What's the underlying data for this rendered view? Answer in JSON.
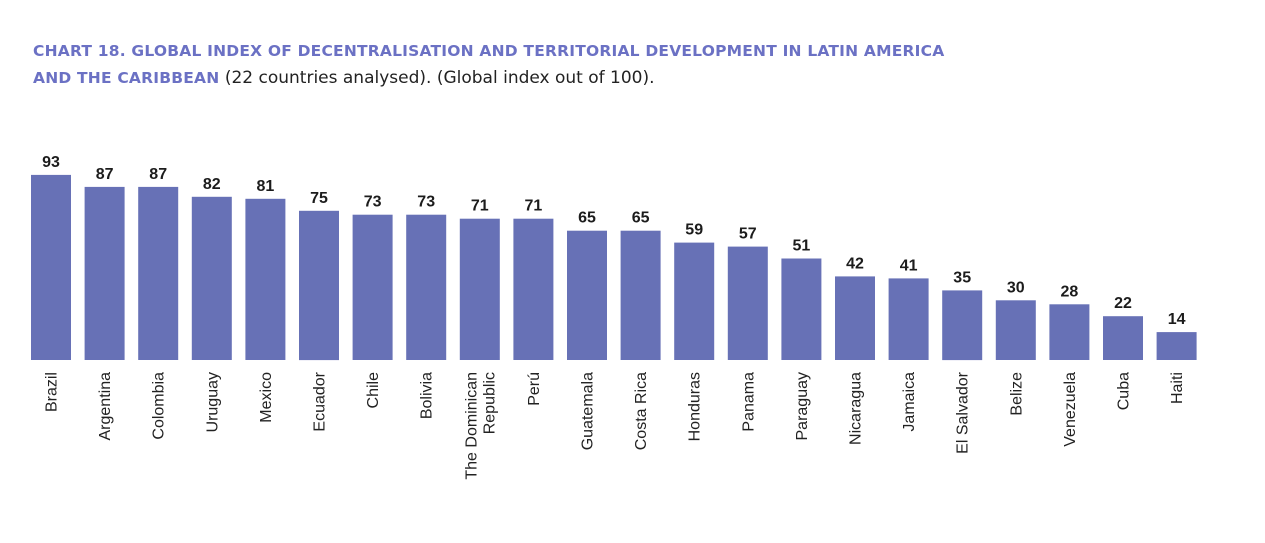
{
  "title": {
    "bold_line1": "CHART 18. GLOBAL INDEX OF DECENTRALISATION AND TERRITORIAL DEVELOPMENT IN LATIN AMERICA",
    "bold_line2": "AND THE CARIBBEAN",
    "normal_suffix": " (22 countries analysed). (Global index out of 100)."
  },
  "colors": {
    "bar": "#6771b6",
    "title_accent": "#6b71c4",
    "text": "#1c1c1c"
  },
  "chart_data": {
    "type": "bar",
    "title": "CHART 18. GLOBAL INDEX OF DECENTRALISATION AND TERRITORIAL DEVELOPMENT IN LATIN AMERICA AND THE CARIBBEAN (22 countries analysed). (Global index out of 100).",
    "xlabel": "",
    "ylabel": "",
    "ylim": [
      0,
      100
    ],
    "grid": false,
    "legend": "none",
    "categories": [
      "Brazil",
      "Argentina",
      "Colombia",
      "Uruguay",
      "Mexico",
      "Ecuador",
      "Chile",
      "Bolivia",
      "The Dominican Republic",
      "Perú",
      "Guatemala",
      "Costa Rica",
      "Honduras",
      "Panama",
      "Paraguay",
      "Nicaragua",
      "Jamaica",
      "El Salvador",
      "Belize",
      "Venezuela",
      "Cuba",
      "Haiti"
    ],
    "category_label_lines": [
      [
        "Brazil"
      ],
      [
        "Argentina"
      ],
      [
        "Colombia"
      ],
      [
        "Uruguay"
      ],
      [
        "Mexico"
      ],
      [
        "Ecuador"
      ],
      [
        "Chile"
      ],
      [
        "Bolivia"
      ],
      [
        "The Dominican",
        "Republic"
      ],
      [
        "Perú"
      ],
      [
        "Guatemala"
      ],
      [
        "Costa Rica"
      ],
      [
        "Honduras"
      ],
      [
        "Panama"
      ],
      [
        "Paraguay"
      ],
      [
        "Nicaragua"
      ],
      [
        "Jamaica"
      ],
      [
        "El Salvador"
      ],
      [
        "Belize"
      ],
      [
        "Venezuela"
      ],
      [
        "Cuba"
      ],
      [
        "Haiti"
      ]
    ],
    "values": [
      93,
      87,
      87,
      82,
      81,
      75,
      73,
      73,
      71,
      71,
      65,
      65,
      59,
      57,
      51,
      42,
      41,
      35,
      30,
      28,
      22,
      14
    ]
  }
}
